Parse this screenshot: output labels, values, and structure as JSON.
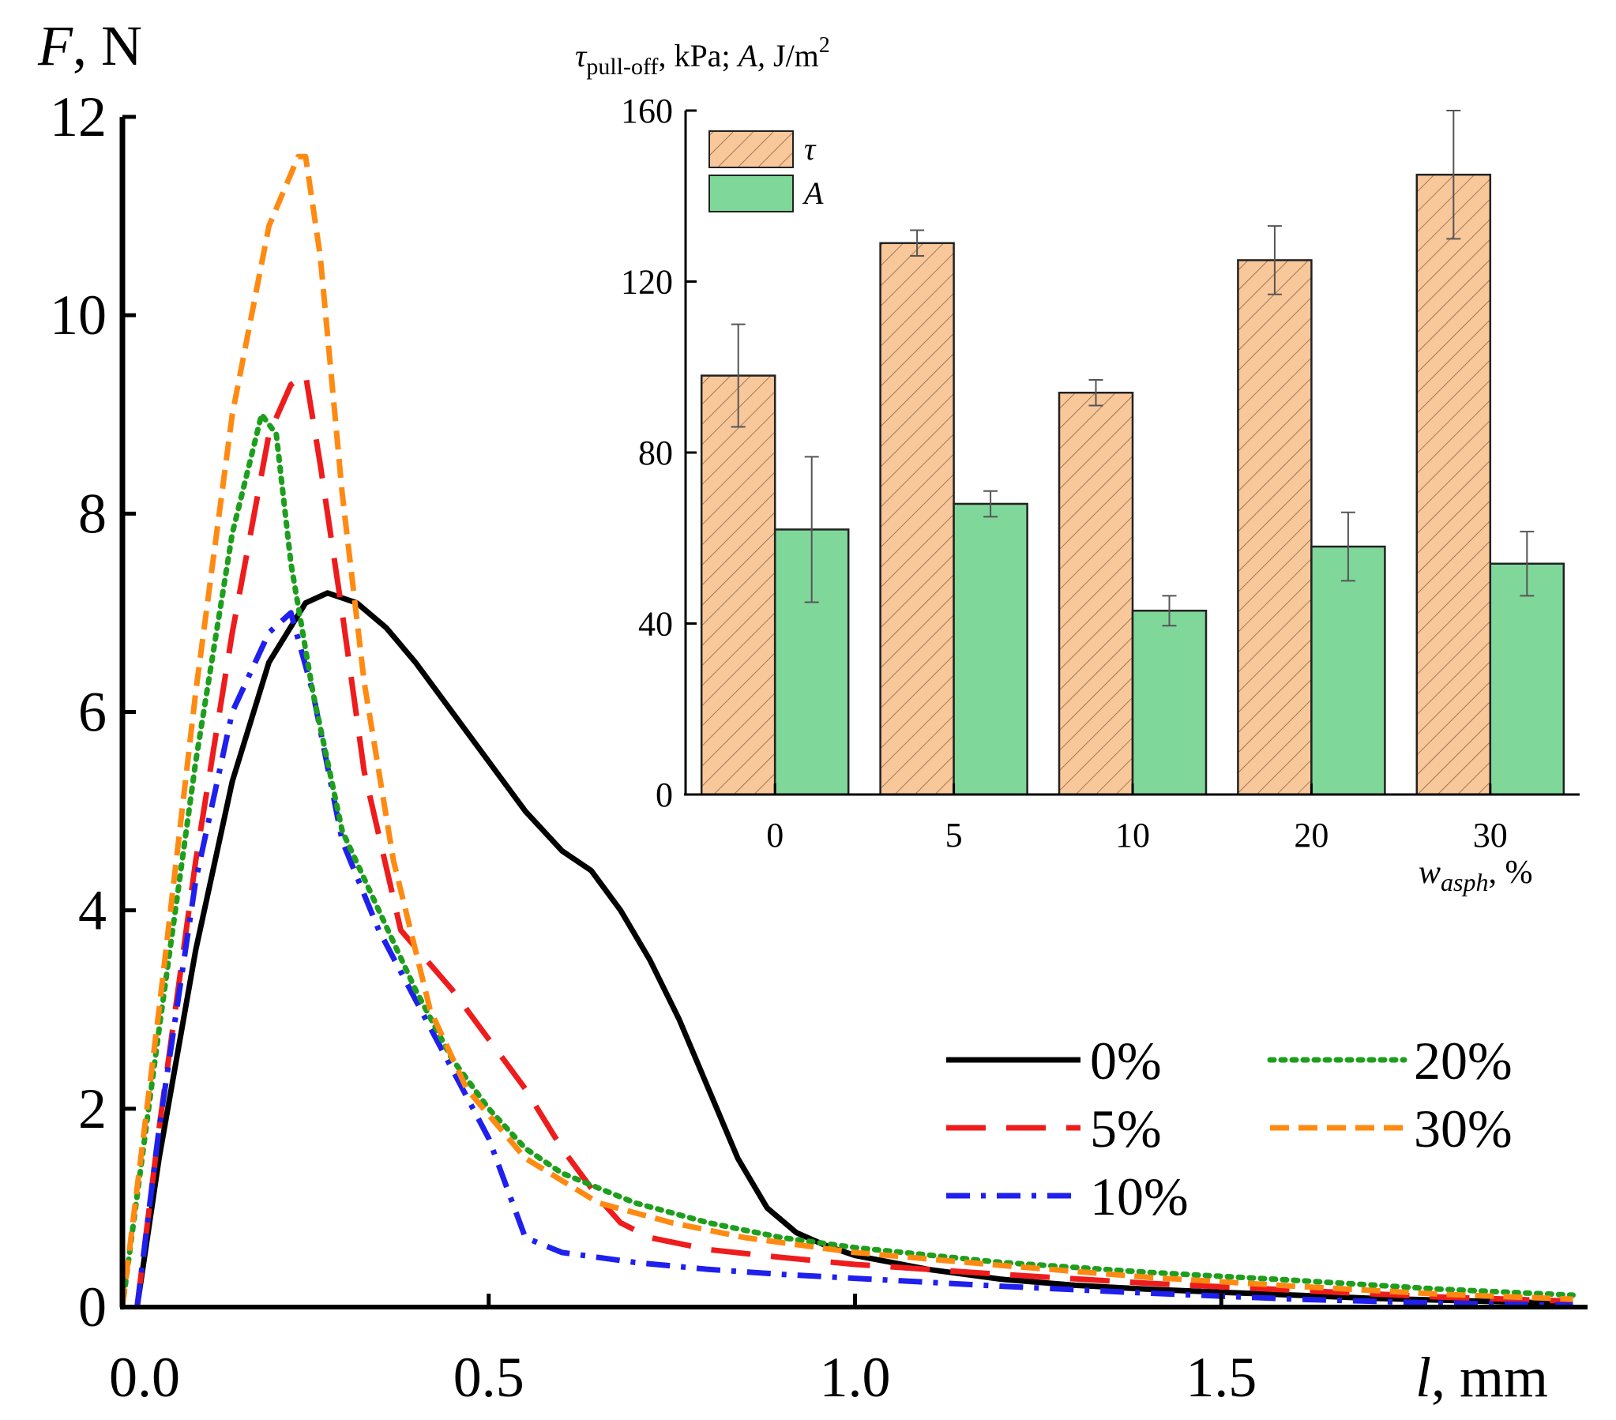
{
  "chart_data": [
    {
      "type": "line",
      "xlabel_var": "l",
      "xlabel_unit": ", mm",
      "ylabel_var": "F",
      "ylabel_unit": ", N",
      "xlim": [
        0,
        2.0
      ],
      "ylim": [
        0,
        12
      ],
      "xticks": [
        0.0,
        0.5,
        1.0,
        1.5
      ],
      "xtick_labels": [
        "0.0",
        "0.5",
        "1.0",
        "1.5"
      ],
      "yticks": [
        0,
        2,
        4,
        6,
        8,
        10,
        12
      ],
      "ytick_labels": [
        "0",
        "2",
        "4",
        "6",
        "8",
        "10",
        "12"
      ],
      "legend_position": "center-right",
      "series": [
        {
          "name": "0%",
          "color": "#000000",
          "style": "solid",
          "x": [
            0.02,
            0.05,
            0.1,
            0.15,
            0.2,
            0.25,
            0.28,
            0.32,
            0.36,
            0.4,
            0.45,
            0.5,
            0.55,
            0.6,
            0.64,
            0.68,
            0.72,
            0.76,
            0.8,
            0.84,
            0.88,
            0.92,
            0.96,
            1.0,
            1.1,
            1.2,
            1.3,
            1.4,
            1.5,
            1.6,
            1.7,
            1.8,
            1.9,
            1.98
          ],
          "y": [
            0.0,
            1.5,
            3.6,
            5.3,
            6.5,
            7.1,
            7.2,
            7.1,
            6.85,
            6.5,
            6.0,
            5.5,
            5.0,
            4.6,
            4.4,
            4.0,
            3.5,
            2.9,
            2.2,
            1.5,
            1.0,
            0.75,
            0.62,
            0.52,
            0.38,
            0.28,
            0.22,
            0.18,
            0.15,
            0.12,
            0.09,
            0.07,
            0.05,
            0.04
          ]
        },
        {
          "name": "5%",
          "color": "#ee1c1c",
          "style": "dashed",
          "x": [
            0.02,
            0.05,
            0.1,
            0.15,
            0.2,
            0.23,
            0.25,
            0.27,
            0.3,
            0.33,
            0.38,
            0.45,
            0.5,
            0.55,
            0.6,
            0.65,
            0.68,
            0.72,
            0.8,
            0.9,
            1.0,
            1.2,
            1.4,
            1.6,
            1.8,
            1.98
          ],
          "y": [
            0.0,
            1.8,
            4.5,
            6.8,
            8.8,
            9.3,
            9.4,
            8.5,
            7.0,
            5.4,
            3.8,
            3.2,
            2.7,
            2.2,
            1.6,
            1.1,
            0.85,
            0.7,
            0.58,
            0.5,
            0.43,
            0.33,
            0.24,
            0.17,
            0.1,
            0.06
          ]
        },
        {
          "name": "10%",
          "color": "#1f1fee",
          "style": "dashdot",
          "x": [
            0.02,
            0.05,
            0.1,
            0.15,
            0.2,
            0.23,
            0.26,
            0.3,
            0.35,
            0.4,
            0.45,
            0.5,
            0.55,
            0.6,
            0.7,
            0.8,
            0.9,
            1.0,
            1.2,
            1.4,
            1.6,
            1.8,
            1.98
          ],
          "y": [
            0.0,
            1.8,
            4.3,
            6.0,
            6.8,
            7.0,
            6.2,
            4.7,
            3.8,
            3.1,
            2.4,
            1.7,
            0.7,
            0.55,
            0.45,
            0.38,
            0.33,
            0.29,
            0.21,
            0.14,
            0.08,
            0.04,
            0.02
          ]
        },
        {
          "name": "20%",
          "color": "#1d9f1d",
          "style": "dotted",
          "x": [
            0.0,
            0.05,
            0.1,
            0.15,
            0.19,
            0.21,
            0.23,
            0.26,
            0.3,
            0.35,
            0.4,
            0.45,
            0.5,
            0.55,
            0.6,
            0.7,
            0.8,
            0.9,
            1.0,
            1.2,
            1.4,
            1.6,
            1.8,
            1.98
          ],
          "y": [
            0.0,
            2.8,
            5.5,
            7.8,
            9.0,
            8.8,
            7.5,
            6.2,
            4.8,
            4.0,
            3.2,
            2.5,
            2.0,
            1.6,
            1.35,
            1.05,
            0.85,
            0.7,
            0.6,
            0.45,
            0.35,
            0.27,
            0.18,
            0.12
          ]
        },
        {
          "name": "30%",
          "color": "#ff8a12",
          "style": "shortdash",
          "x": [
            0.0,
            0.05,
            0.1,
            0.15,
            0.2,
            0.24,
            0.25,
            0.27,
            0.3,
            0.33,
            0.37,
            0.42,
            0.47,
            0.55,
            0.65,
            0.75,
            0.85,
            1.0,
            1.2,
            1.4,
            1.6,
            1.8,
            1.98
          ],
          "y": [
            0.0,
            3.0,
            6.2,
            9.0,
            10.9,
            11.6,
            11.6,
            10.6,
            8.2,
            6.3,
            4.5,
            3.0,
            2.2,
            1.5,
            1.05,
            0.85,
            0.7,
            0.55,
            0.42,
            0.3,
            0.21,
            0.13,
            0.08
          ]
        }
      ]
    },
    {
      "type": "bar",
      "title_tau": "τ",
      "title_sub": "pull-off",
      "title_mid": ", kPa; ",
      "title_A": "A,",
      "title_unit": " J/m",
      "title_sup": "2",
      "xlabel_var": "w",
      "xlabel_sub": "asph",
      "xlabel_unit": ", %",
      "categories": [
        "0",
        "5",
        "10",
        "20",
        "30"
      ],
      "ylim": [
        0,
        160
      ],
      "yticks": [
        0,
        40,
        80,
        120,
        160
      ],
      "ytick_labels": [
        "0",
        "40",
        "80",
        "120",
        "160"
      ],
      "legend_position": "top-left",
      "series": [
        {
          "name": "τ",
          "color": "#f8c79a",
          "pattern": "hatched",
          "values": [
            98,
            129,
            94,
            125,
            145
          ],
          "errors": [
            12,
            3,
            3,
            8,
            15
          ]
        },
        {
          "name": "A",
          "color": "#7fd79a",
          "pattern": "solid",
          "values": [
            62,
            68,
            43,
            58,
            54
          ],
          "errors": [
            17,
            3,
            3.5,
            8,
            7.5
          ]
        }
      ]
    }
  ]
}
